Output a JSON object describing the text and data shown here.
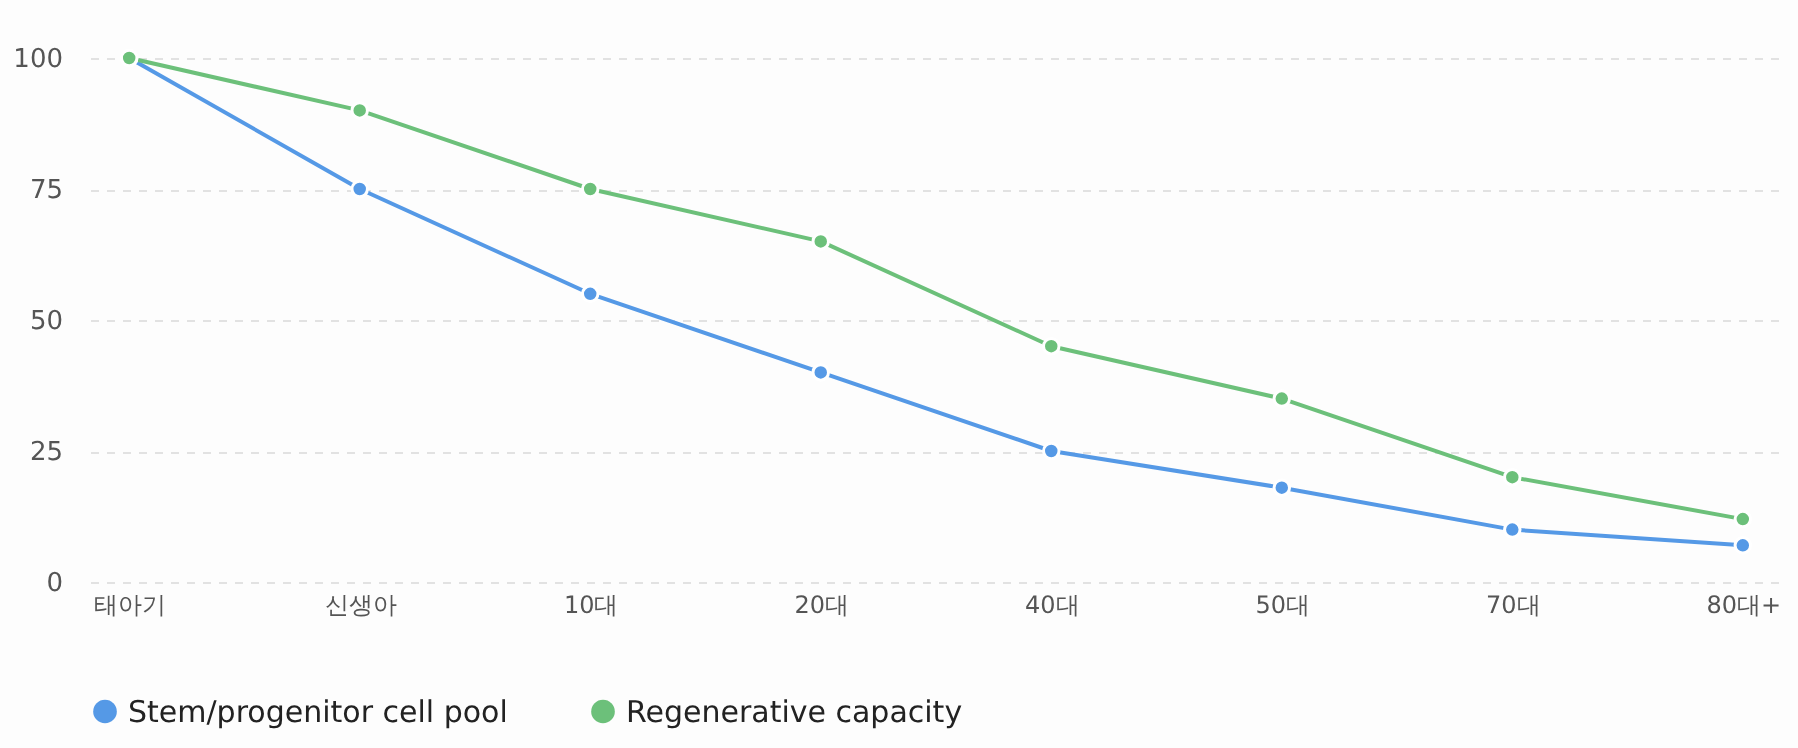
{
  "chart_data": {
    "type": "line",
    "categories": [
      "태아기",
      "신생아",
      "10대",
      "20대",
      "40대",
      "50대",
      "70대",
      "80대+"
    ],
    "series": [
      {
        "name": "Stem/progenitor cell pool",
        "color": "#5599e6",
        "values": [
          100,
          75,
          55,
          40,
          25,
          18,
          10,
          7
        ]
      },
      {
        "name": "Regenerative capacity",
        "color": "#6cc07a",
        "values": [
          100,
          90,
          75,
          65,
          45,
          35,
          20,
          12
        ]
      }
    ],
    "ylim": [
      0,
      100
    ],
    "yticks": [
      0,
      25,
      50,
      75,
      100
    ],
    "grid": "y",
    "legend": "bottom",
    "marker": "circle",
    "line_style": "solid"
  }
}
